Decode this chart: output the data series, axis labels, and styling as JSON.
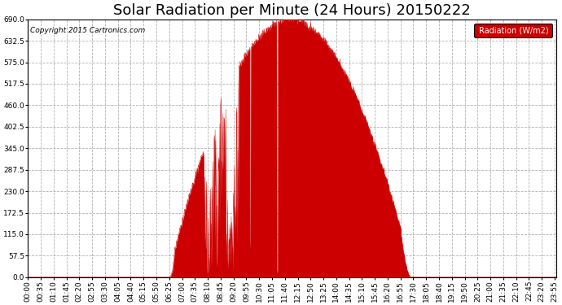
{
  "title": "Solar Radiation per Minute (24 Hours) 20150222",
  "ylabel": "Radiation (W/m2)",
  "copyright_text": "Copyright 2015 Cartronics.com",
  "ylim": [
    0.0,
    690.0
  ],
  "yticks": [
    0.0,
    57.5,
    115.0,
    172.5,
    230.0,
    287.5,
    345.0,
    402.5,
    460.0,
    517.5,
    575.0,
    632.5,
    690.0
  ],
  "bar_color": "#cc0000",
  "line_color": "#dd0000",
  "bg_color": "#ffffff",
  "grid_color": "#aaaaaa",
  "legend_bg": "#cc0000",
  "legend_text_color": "#ffffff",
  "title_fontsize": 13,
  "axis_fontsize": 6.5,
  "total_minutes": 1440,
  "sunrise_minute": 385,
  "sunset_minute": 1045,
  "peak_minute": 695,
  "peak_value": 690.0,
  "xtick_interval": 35
}
